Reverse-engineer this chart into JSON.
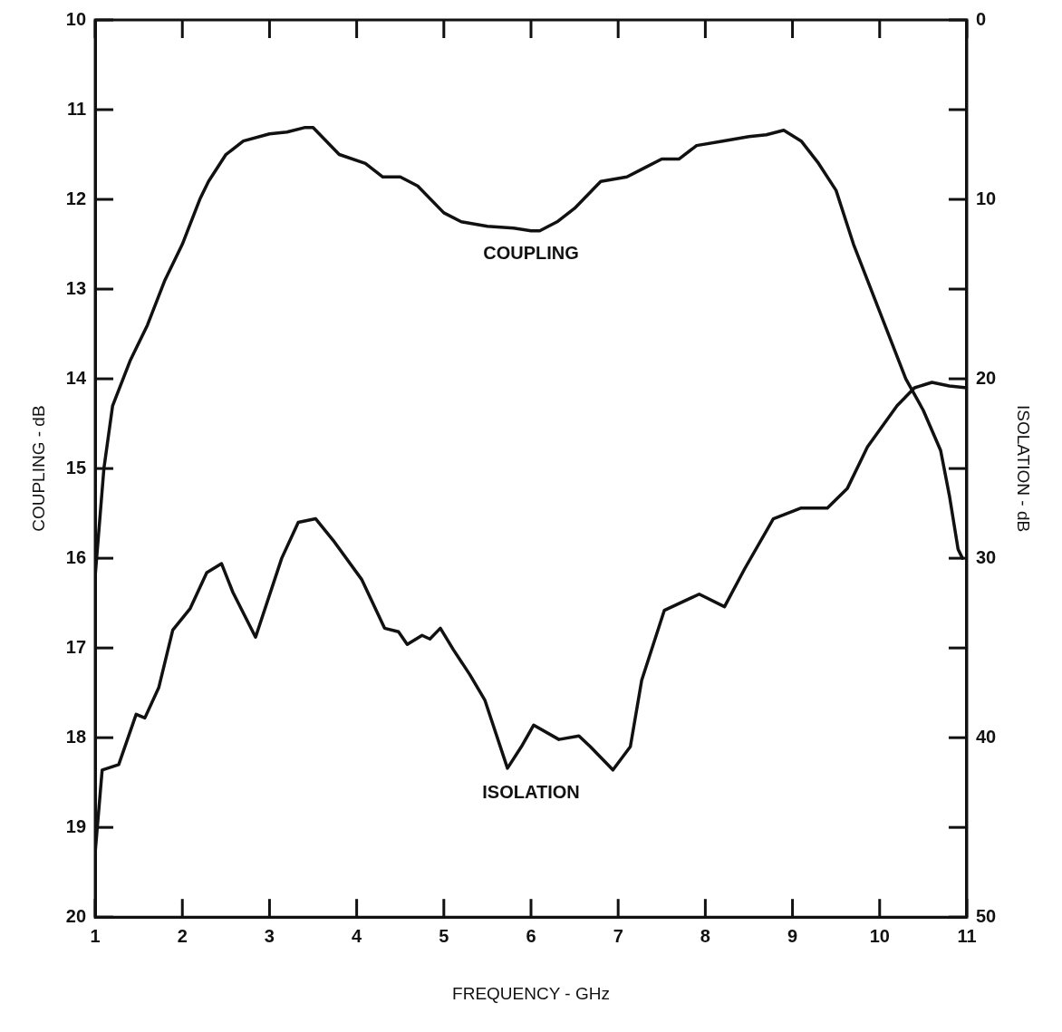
{
  "chart_data": {
    "type": "line",
    "xlabel": "FREQUENCY - GHz",
    "ylabel": "COUPLING - dB",
    "y2label": "ISOLATION - dB",
    "xlim": [
      1,
      11
    ],
    "xticks": [
      1,
      2,
      3,
      4,
      5,
      6,
      7,
      8,
      9,
      10,
      11
    ],
    "ylim": [
      20,
      10
    ],
    "yticks": [
      10,
      11,
      12,
      13,
      14,
      15,
      16,
      17,
      18,
      19,
      20
    ],
    "y2lim": [
      50,
      0
    ],
    "y2ticks": [
      0,
      10,
      20,
      30,
      40,
      50
    ],
    "grid": false,
    "legend": false,
    "marker": "none",
    "line_style": "solid",
    "series": [
      {
        "name": "COUPLING",
        "color": "#111111",
        "x": [
          1.0,
          1.1,
          1.2,
          1.4,
          1.6,
          1.8,
          2.0,
          2.2,
          2.3,
          2.5,
          2.7,
          3.0,
          3.2,
          3.4,
          3.5,
          3.8,
          4.1,
          4.3,
          4.5,
          4.7,
          5.0,
          5.2,
          5.5,
          5.8,
          6.0,
          6.1,
          6.3,
          6.5,
          6.8,
          7.1,
          7.3,
          7.5,
          7.7,
          7.9,
          8.2,
          8.5,
          8.7,
          8.9,
          9.1,
          9.3,
          9.5,
          9.7,
          9.9,
          10.1,
          10.3,
          10.5,
          10.7,
          10.8,
          10.9,
          10.95
        ],
        "values": [
          16.2,
          15.0,
          14.3,
          13.8,
          13.4,
          12.9,
          12.5,
          12.0,
          11.8,
          11.5,
          11.35,
          11.27,
          11.25,
          11.2,
          11.2,
          11.5,
          11.6,
          11.75,
          11.75,
          11.85,
          12.15,
          12.25,
          12.3,
          12.32,
          12.35,
          12.35,
          12.25,
          12.1,
          11.8,
          11.75,
          11.65,
          11.55,
          11.55,
          11.4,
          11.35,
          11.3,
          11.28,
          11.23,
          11.35,
          11.6,
          11.9,
          12.5,
          13.0,
          13.5,
          14.0,
          14.35,
          14.8,
          15.3,
          15.9,
          16.0
        ]
      },
      {
        "name": "ISOLATION",
        "color": "#111111",
        "axis": "y2",
        "x": [
          1.0,
          1.08,
          1.27,
          1.47,
          1.57,
          1.73,
          1.89,
          2.09,
          2.28,
          2.45,
          2.58,
          2.84,
          3.14,
          3.33,
          3.53,
          3.73,
          4.06,
          4.32,
          4.48,
          4.58,
          4.75,
          4.84,
          4.96,
          5.11,
          5.3,
          5.47,
          5.73,
          5.89,
          6.03,
          6.32,
          6.55,
          6.68,
          6.94,
          7.14,
          7.27,
          7.53,
          7.93,
          8.22,
          8.45,
          8.78,
          9.1,
          9.4,
          9.63,
          9.86,
          10.2,
          10.4,
          10.6,
          10.8,
          11.0
        ],
        "values": [
          46.4,
          41.8,
          41.5,
          38.7,
          38.9,
          37.2,
          34.0,
          32.8,
          30.8,
          30.3,
          31.9,
          34.4,
          30.0,
          28.0,
          27.8,
          29.0,
          31.2,
          33.9,
          34.1,
          34.8,
          34.3,
          34.5,
          33.9,
          35.1,
          36.5,
          37.9,
          41.7,
          40.5,
          39.3,
          40.1,
          39.9,
          40.5,
          41.8,
          40.5,
          36.8,
          32.9,
          32.0,
          32.7,
          30.6,
          27.8,
          27.2,
          27.2,
          26.1,
          23.8,
          21.5,
          20.5,
          20.2,
          20.4,
          20.5
        ]
      }
    ]
  }
}
